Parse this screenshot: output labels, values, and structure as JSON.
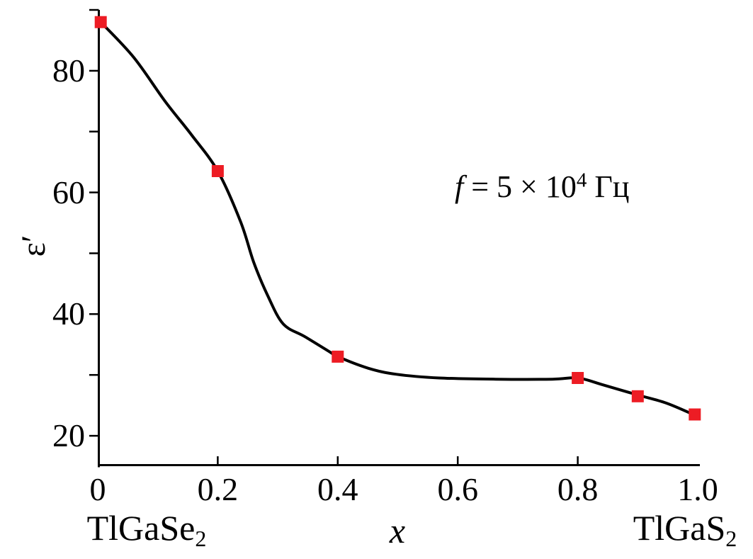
{
  "figure": {
    "background": "#ffffff",
    "axis_color": "#000000",
    "curve_color": "#000000",
    "marker_color": "#ed1c24"
  },
  "labels": {
    "y_axis": "ε′",
    "x_axis": "x",
    "left_compound": {
      "formula": "TlGaSe",
      "subscript": "2"
    },
    "right_compound": {
      "formula": "TlGaS",
      "subscript": "2"
    },
    "annotation": {
      "variable": "f",
      "equals_value": " = 5 × 10",
      "exponent": "4",
      "unit": " Гц"
    }
  },
  "chart_data": {
    "type": "line",
    "title": "",
    "xlabel": "x",
    "ylabel": "ε′",
    "annotation": "f = 5 × 10⁴ Гц",
    "grid": false,
    "legend": "none",
    "xlim": [
      0,
      1.0
    ],
    "ylim": [
      15,
      90
    ],
    "x_tick_values": [
      0,
      0.2,
      0.4,
      0.6,
      0.8,
      1.0
    ],
    "x_tick_labels": [
      "0",
      "0.2",
      "0.4",
      "0.6",
      "0.8",
      "1.0"
    ],
    "x_ticks_drawn": [
      0.2,
      0.4,
      0.6,
      0.8
    ],
    "y_tick_values": [
      20,
      40,
      60,
      80
    ],
    "y_tick_labels": [
      "20",
      "40",
      "60",
      "80"
    ],
    "y_minor_ticks": [
      30,
      50,
      70,
      90
    ],
    "series": [
      {
        "name": "ε′(x) at f = 5 × 10⁴ Гц",
        "marker": "square",
        "color": "#ed1c24",
        "points": [
          {
            "x": 0,
            "y": 88
          },
          {
            "x": 0.2,
            "y": 63.5
          },
          {
            "x": 0.4,
            "y": 33
          },
          {
            "x": 0.8,
            "y": 29.5
          },
          {
            "x": 0.9,
            "y": 26.5
          },
          {
            "x": 1.0,
            "y": 23.5
          }
        ]
      }
    ],
    "curve": [
      [
        0.005,
        88
      ],
      [
        0.06,
        82.2
      ],
      [
        0.112,
        75
      ],
      [
        0.156,
        69.5
      ],
      [
        0.2,
        63.5
      ],
      [
        0.238,
        55.2
      ],
      [
        0.26,
        48.5
      ],
      [
        0.283,
        43.1
      ],
      [
        0.309,
        38.4
      ],
      [
        0.345,
        36.3
      ],
      [
        0.388,
        33.7
      ],
      [
        0.4,
        33
      ],
      [
        0.451,
        31.1
      ],
      [
        0.498,
        30.1
      ],
      [
        0.569,
        29.5
      ],
      [
        0.663,
        29.3
      ],
      [
        0.758,
        29.3
      ],
      [
        0.8,
        29.5
      ],
      [
        0.841,
        28.4
      ],
      [
        0.9,
        26.7
      ],
      [
        0.947,
        25.4
      ],
      [
        0.995,
        23.4
      ]
    ]
  }
}
